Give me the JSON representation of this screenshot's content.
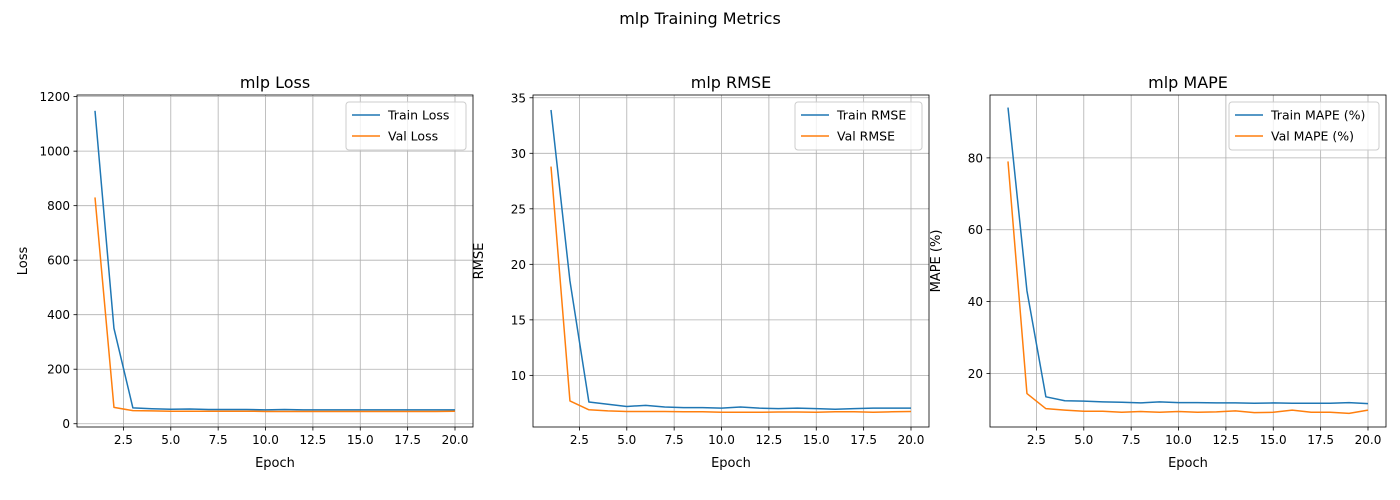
{
  "figure": {
    "suptitle": "mlp Training Metrics"
  },
  "colors": {
    "train": "#1f77b4",
    "val": "#ff7f0e",
    "grid": "#b0b0b0"
  },
  "chart_data": [
    {
      "type": "line",
      "title": "mlp Loss",
      "xlabel": "Epoch",
      "ylabel": "Loss",
      "xlim": [
        0.05,
        20.95
      ],
      "ylim": [
        -12,
        1206
      ],
      "xticks": [
        2.5,
        5.0,
        7.5,
        10.0,
        12.5,
        15.0,
        17.5,
        20.0
      ],
      "yticks": [
        0,
        200,
        400,
        600,
        800,
        1000,
        1200
      ],
      "grid": true,
      "legend": "upper right",
      "x": [
        1,
        2,
        3,
        4,
        5,
        6,
        7,
        8,
        9,
        10,
        11,
        12,
        13,
        14,
        15,
        16,
        17,
        18,
        19,
        20
      ],
      "series": [
        {
          "name": "Train Loss",
          "color": "#1f77b4",
          "values": [
            1148,
            350,
            58,
            55,
            53,
            54,
            52,
            52,
            52,
            51,
            52,
            51,
            51,
            51,
            51,
            51,
            51,
            51,
            51,
            51
          ]
        },
        {
          "name": "Val Loss",
          "color": "#ff7f0e",
          "values": [
            830,
            60,
            48,
            47,
            46,
            46,
            46,
            46,
            46,
            45,
            45,
            45,
            45,
            45,
            45,
            45,
            45,
            45,
            45,
            46
          ]
        }
      ]
    },
    {
      "type": "line",
      "title": "mlp RMSE",
      "xlabel": "Epoch",
      "ylabel": "RMSE",
      "xlim": [
        0.05,
        20.95
      ],
      "ylim": [
        5.35,
        35.25
      ],
      "xticks": [
        2.5,
        5.0,
        7.5,
        10.0,
        12.5,
        15.0,
        17.5,
        20.0
      ],
      "yticks": [
        10,
        15,
        20,
        25,
        30,
        35
      ],
      "grid": true,
      "legend": "upper right",
      "x": [
        1,
        2,
        3,
        4,
        5,
        6,
        7,
        8,
        9,
        10,
        11,
        12,
        13,
        14,
        15,
        16,
        17,
        18,
        19,
        20
      ],
      "series": [
        {
          "name": "Train RMSE",
          "color": "#1f77b4",
          "values": [
            33.9,
            18.5,
            7.6,
            7.4,
            7.2,
            7.3,
            7.15,
            7.1,
            7.1,
            7.05,
            7.15,
            7.05,
            7.0,
            7.05,
            7.0,
            6.95,
            7.0,
            7.05,
            7.05,
            7.05
          ]
        },
        {
          "name": "Val RMSE",
          "color": "#ff7f0e",
          "values": [
            28.8,
            7.7,
            6.9,
            6.8,
            6.75,
            6.75,
            6.75,
            6.72,
            6.72,
            6.68,
            6.68,
            6.68,
            6.7,
            6.7,
            6.68,
            6.72,
            6.72,
            6.68,
            6.72,
            6.75
          ]
        }
      ]
    },
    {
      "type": "line",
      "title": "mlp MAPE",
      "xlabel": "Epoch",
      "ylabel": "MAPE (%)",
      "xlim": [
        0.05,
        20.95
      ],
      "ylim": [
        5.1,
        97.5
      ],
      "xticks": [
        2.5,
        5.0,
        7.5,
        10.0,
        12.5,
        15.0,
        17.5,
        20.0
      ],
      "yticks": [
        20,
        40,
        60,
        80
      ],
      "grid": true,
      "legend": "upper right",
      "x": [
        1,
        2,
        3,
        4,
        5,
        6,
        7,
        8,
        9,
        10,
        11,
        12,
        13,
        14,
        15,
        16,
        17,
        18,
        19,
        20
      ],
      "series": [
        {
          "name": "Train MAPE (%)",
          "color": "#1f77b4",
          "values": [
            94,
            43,
            13.5,
            12.4,
            12.3,
            12.1,
            12.0,
            11.8,
            12.1,
            11.9,
            11.9,
            11.8,
            11.8,
            11.7,
            11.8,
            11.7,
            11.7,
            11.7,
            11.9,
            11.6
          ]
        },
        {
          "name": "Val MAPE (%)",
          "color": "#ff7f0e",
          "values": [
            79,
            14.4,
            10.2,
            9.8,
            9.5,
            9.5,
            9.2,
            9.4,
            9.2,
            9.4,
            9.2,
            9.3,
            9.6,
            9.1,
            9.2,
            9.8,
            9.2,
            9.2,
            8.9,
            9.8
          ]
        }
      ]
    }
  ]
}
